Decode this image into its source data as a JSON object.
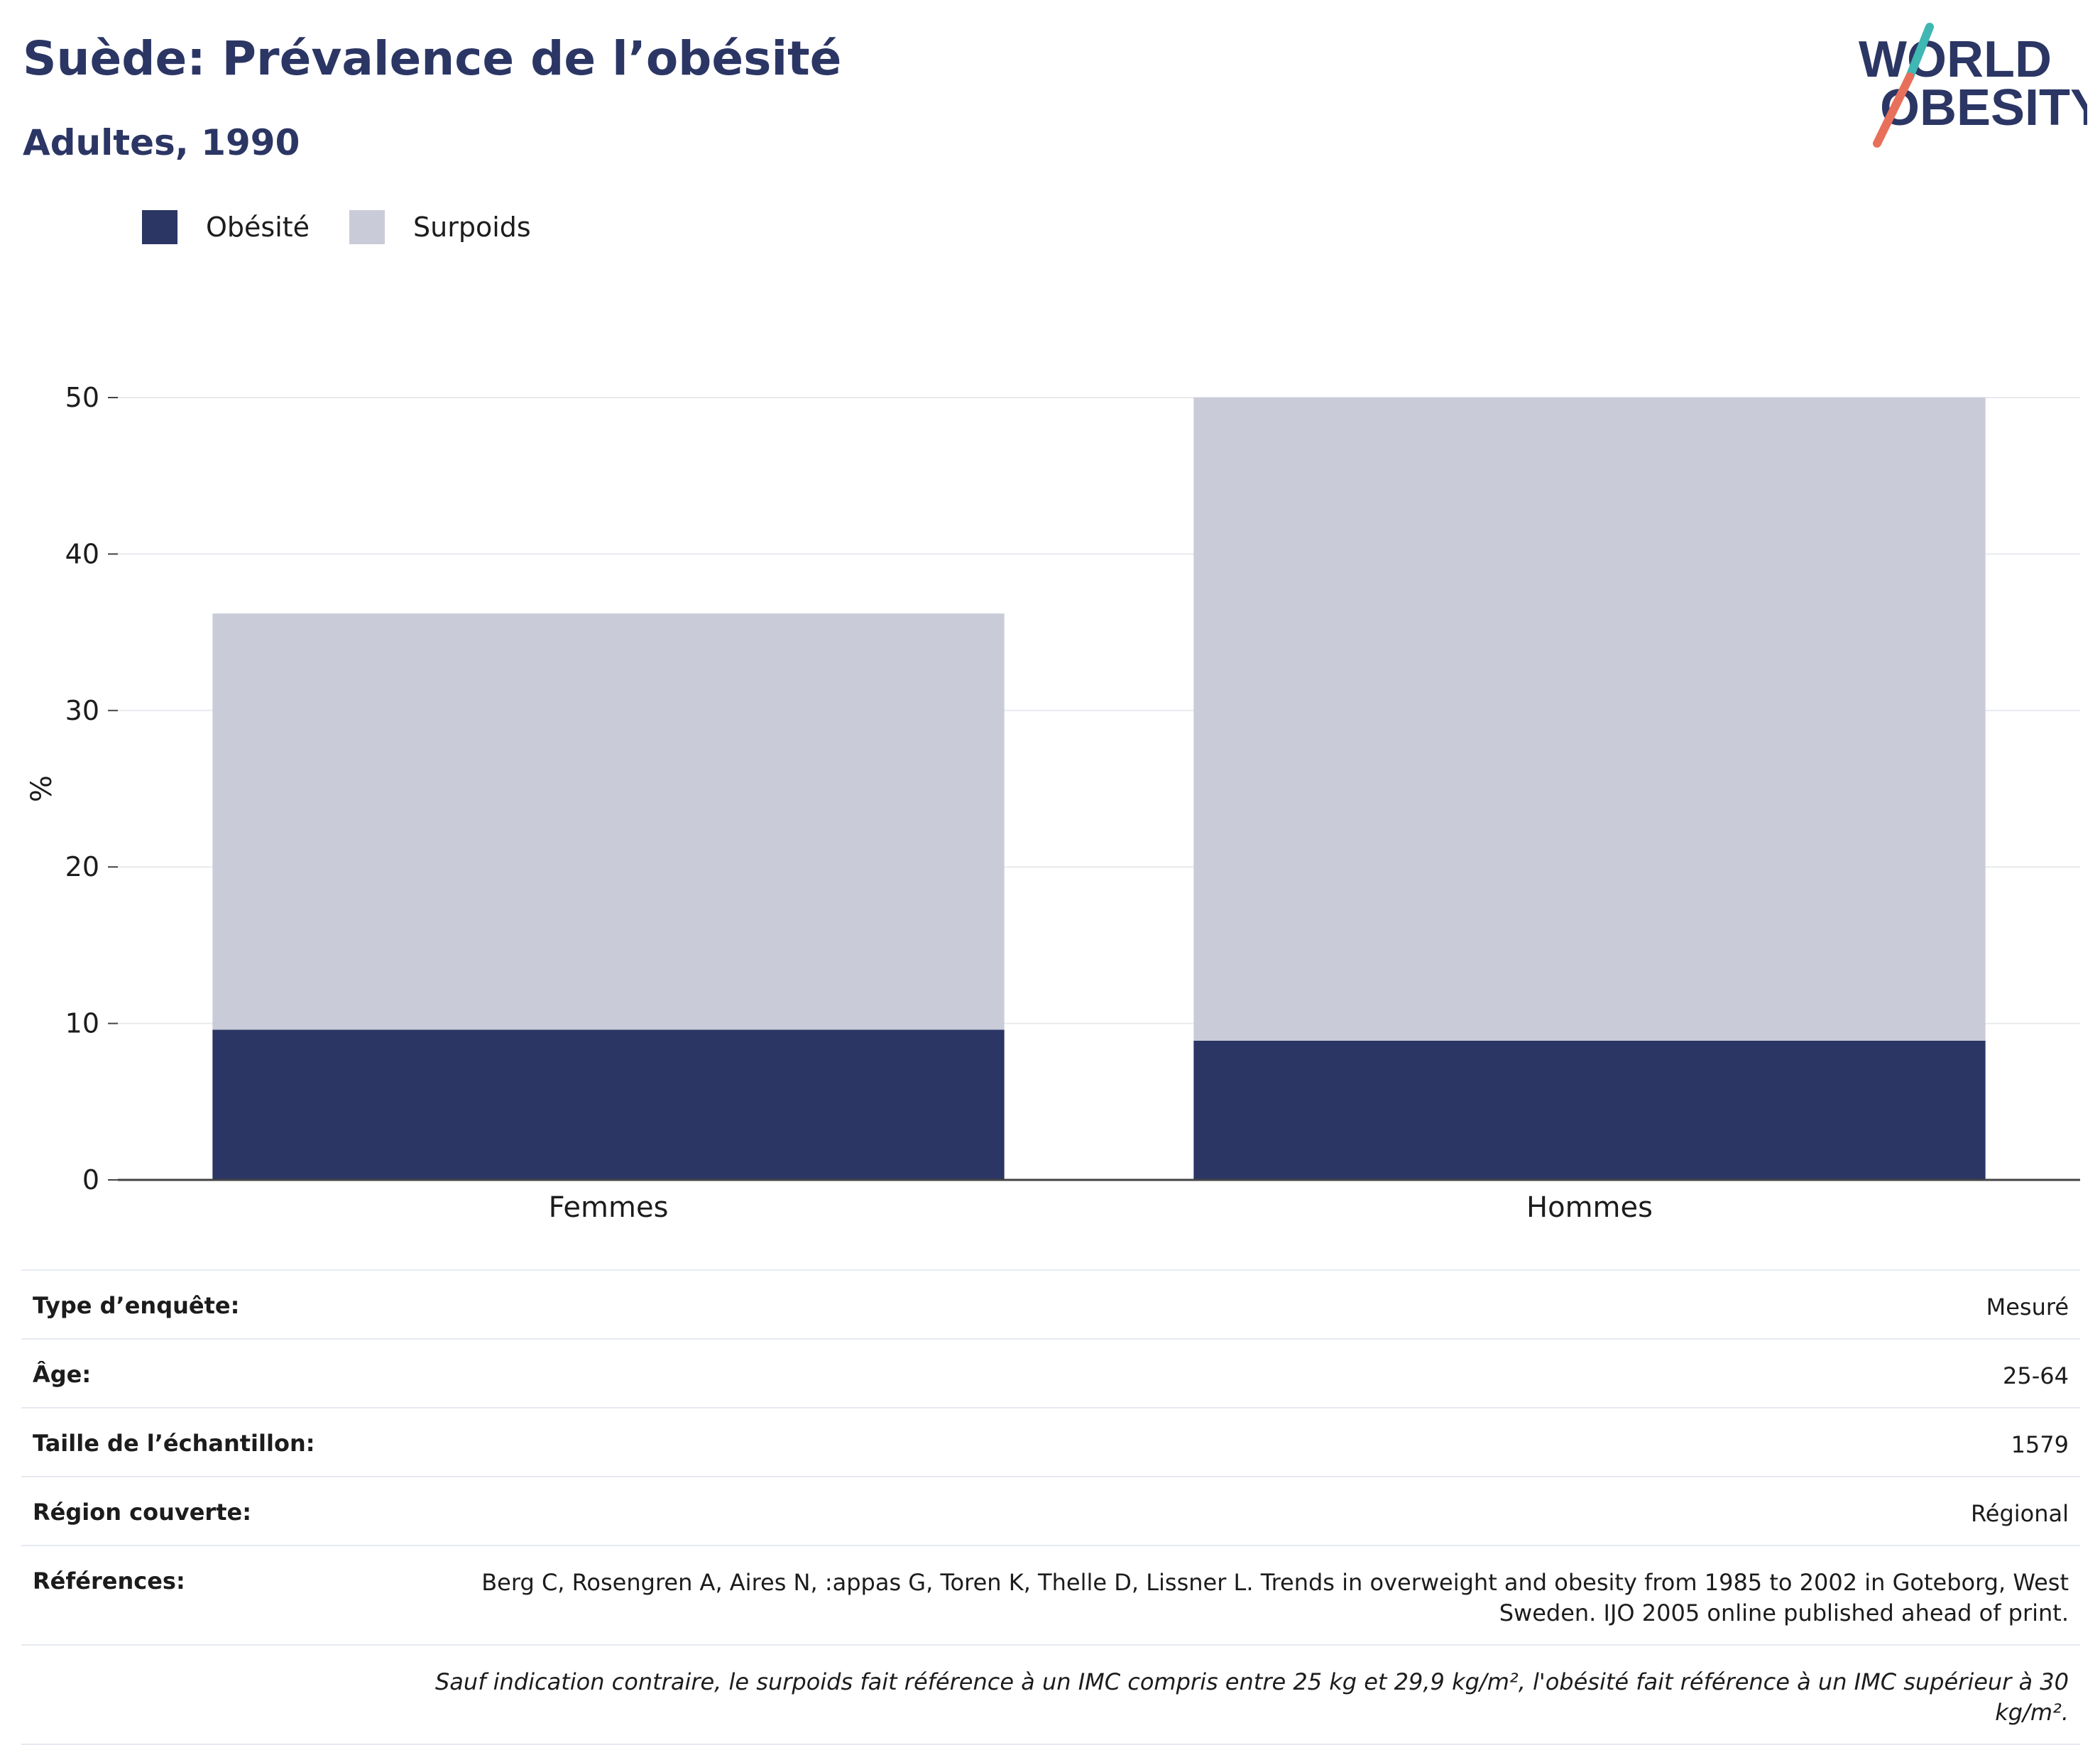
{
  "header": {
    "title": "Suède: Prévalence de l’obésité",
    "subtitle": "Adultes, 1990"
  },
  "logo": {
    "line1": "WORLD",
    "line2": "OBESITY"
  },
  "colors": {
    "obesity": "#2b3664",
    "overweight": "#c9ccd8",
    "text": "#2b3664",
    "accent_teal": "#3fb7b3",
    "accent_red": "#e8705a"
  },
  "legend": [
    {
      "label": "Obésité",
      "color": "#2b3664"
    },
    {
      "label": "Surpoids",
      "color": "#c9ccd8"
    }
  ],
  "chart_data": {
    "type": "bar",
    "stacked": true,
    "categories": [
      "Femmes",
      "Hommes"
    ],
    "series": [
      {
        "name": "Obésité",
        "values": [
          9.6,
          8.9
        ]
      },
      {
        "name": "Surpoids",
        "values": [
          26.6,
          41.1
        ]
      }
    ],
    "ylabel": "%",
    "ylim": [
      0,
      50
    ],
    "yticks": [
      0,
      10,
      20,
      30,
      40,
      50
    ],
    "grid": true,
    "legend_position": "top-left"
  },
  "info": {
    "rows": [
      {
        "label": "Type d’enquête:",
        "value": "Mesuré"
      },
      {
        "label": "Âge:",
        "value": "25-64"
      },
      {
        "label": "Taille de l’échantillon:",
        "value": "1579"
      },
      {
        "label": "Région couverte:",
        "value": "Régional"
      },
      {
        "label": "Références:",
        "value": "Berg C, Rosengren A, Aires N, :appas G, Toren K, Thelle D, Lissner L. Trends in overweight and obesity from 1985 to 2002 in Goteborg, West Sweden. IJO 2005 online published ahead of print."
      }
    ],
    "note": "Sauf indication contraire, le surpoids fait référence à un IMC compris entre 25 kg et 29,9 kg/m², l'obésité fait référence à un IMC supérieur à 30 kg/m²."
  }
}
